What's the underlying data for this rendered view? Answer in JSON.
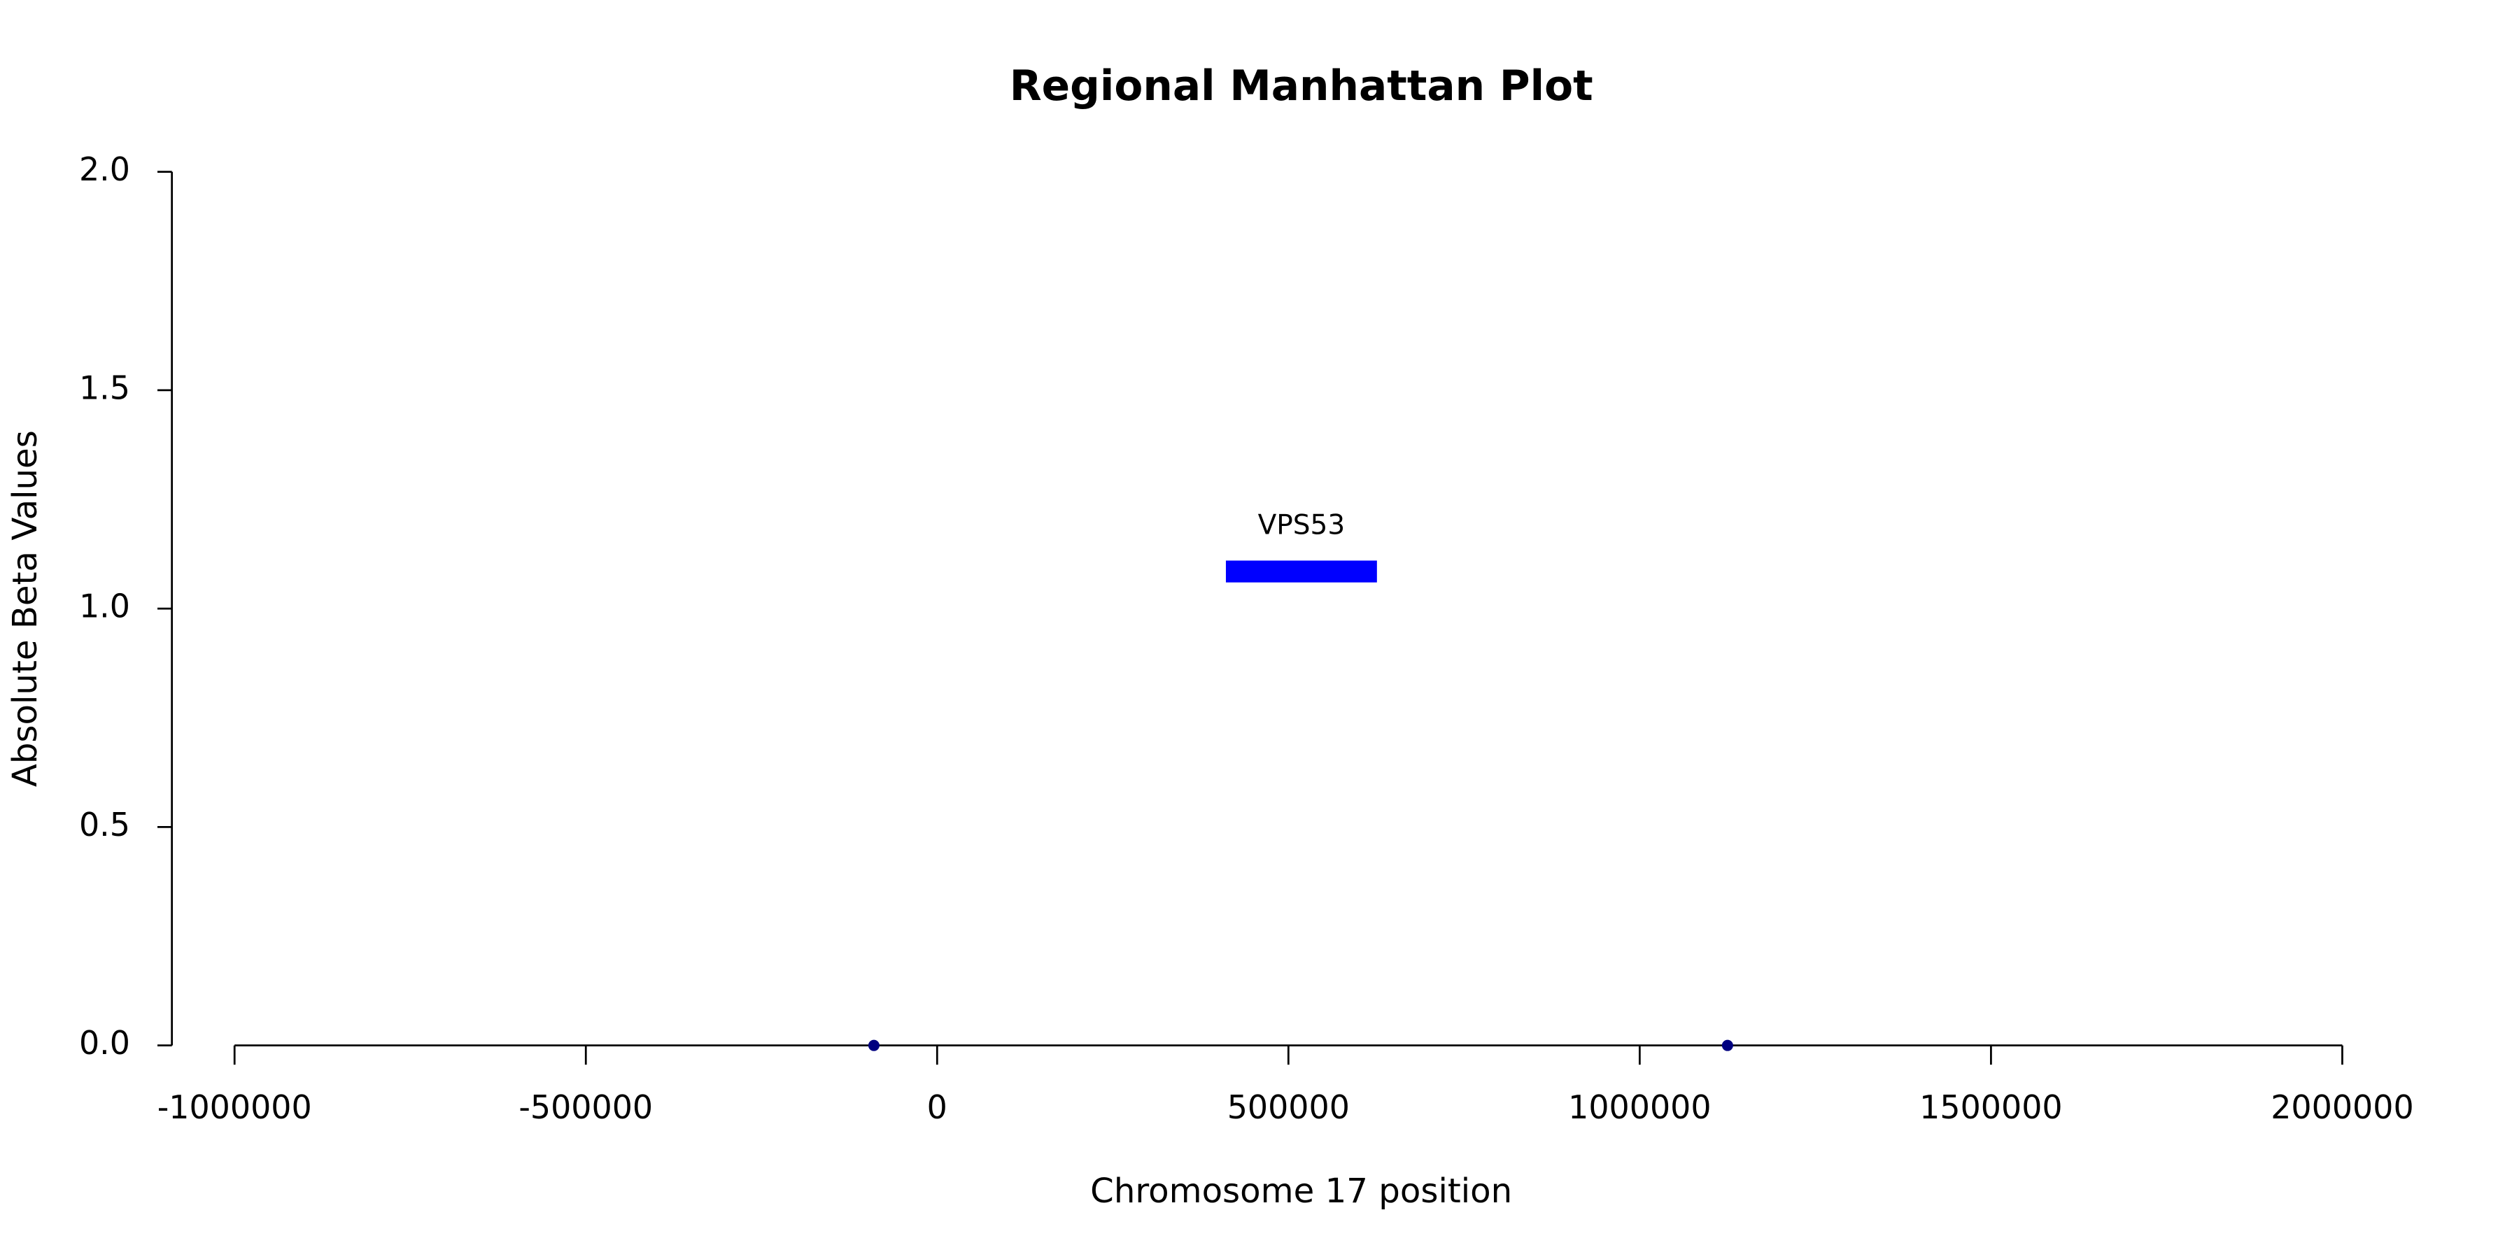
{
  "chart_data": {
    "type": "scatter",
    "title": "Regional Manhattan Plot",
    "x_label": "Chromosome 17 position",
    "y_label": "Absolute Beta Values",
    "x": [
      -90000,
      1125000
    ],
    "values": [
      0,
      0
    ],
    "color": "#000080",
    "genes": [
      {
        "name": "VPS53",
        "start": 411000,
        "end": 626000,
        "ylim": [
          1.06,
          1.11
        ],
        "color": "#0000ff"
      }
    ],
    "xlim": [
      -1000000,
      2000000
    ],
    "xticks": [
      -1000000,
      -500000,
      0,
      500000,
      1000000,
      1500000,
      2000000
    ],
    "ylim": [
      0,
      2
    ],
    "yticks": [
      {
        "value": 0,
        "label": "0.0"
      },
      0.5,
      {
        "value": 1,
        "label": "1.0"
      },
      1.5,
      {
        "value": 2,
        "label": "2.0"
      }
    ]
  }
}
